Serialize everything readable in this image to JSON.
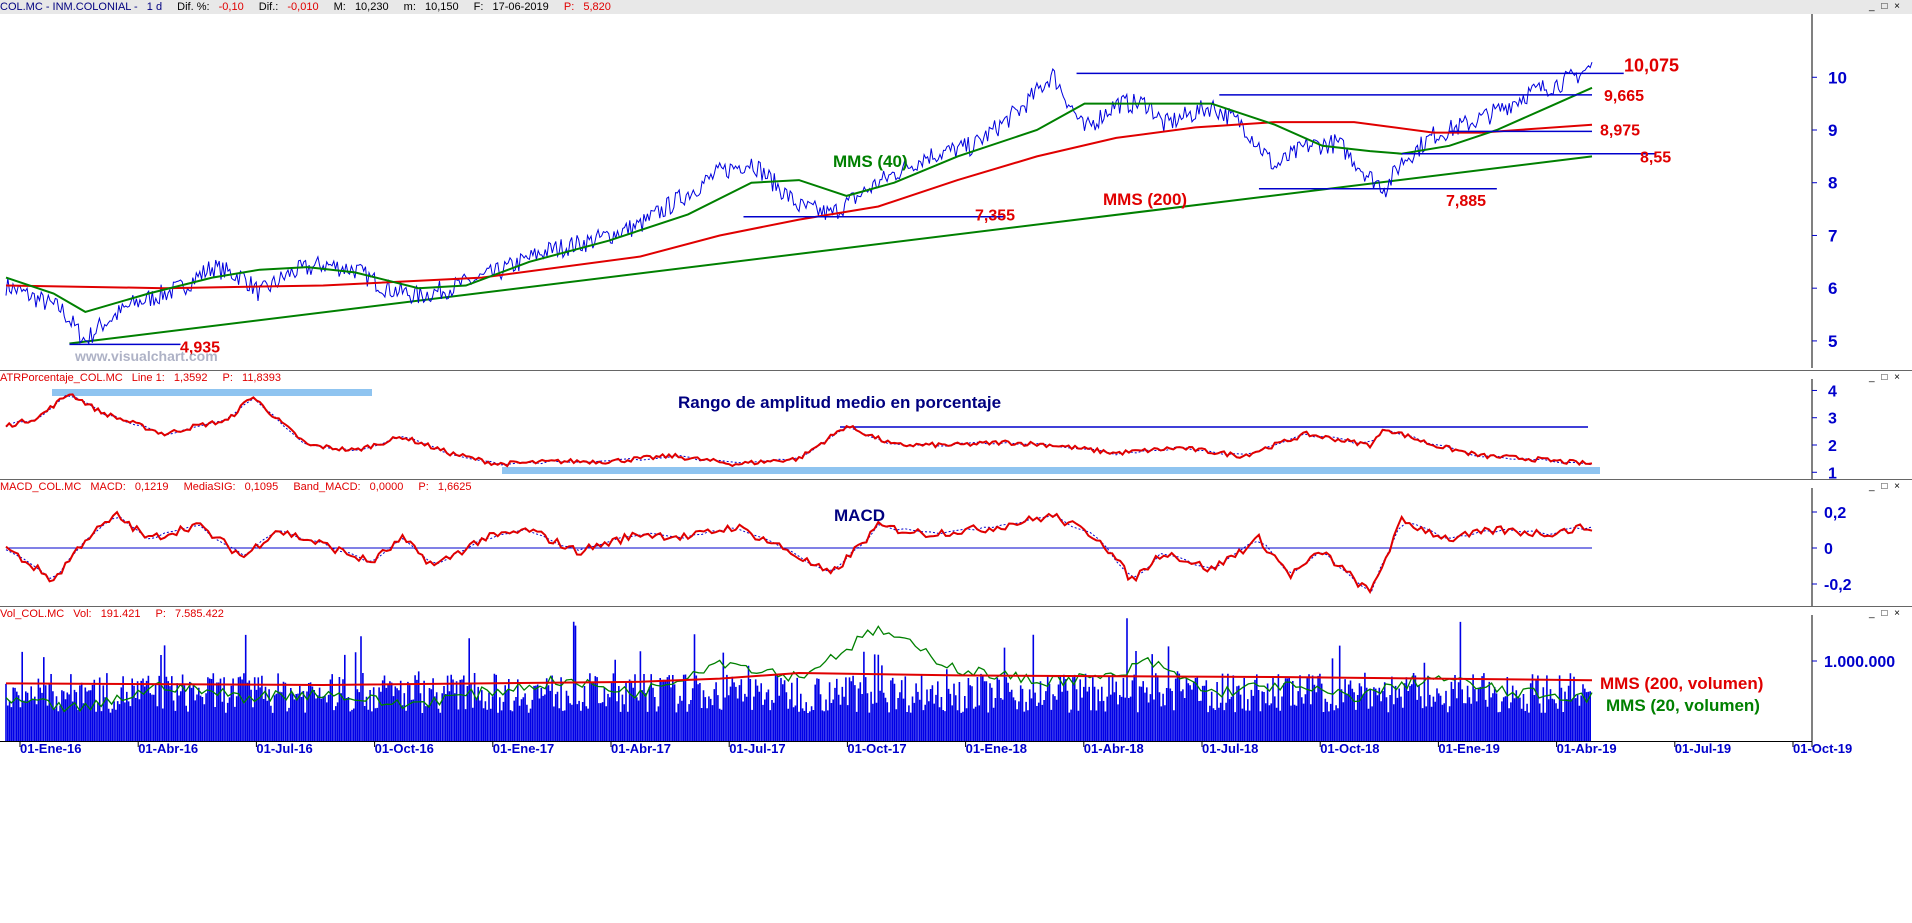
{
  "colors": {
    "price": "#0000dd",
    "mma200": "#e00000",
    "mma40": "#008000",
    "trend": "#008000",
    "hline": "#0000cc",
    "annot_red": "#e00000",
    "annot_green": "#008000",
    "annot_navy": "#000080",
    "band": "#8fc4f0",
    "axis": "#0000cc"
  },
  "main": {
    "header": {
      "symbol": "COL.MC - INM.COLONIAL -",
      "period": "1 d",
      "dif_pct_label": "Dif. %:",
      "dif_pct": "-0,10",
      "dif_label": "Dif.:",
      "dif": "-0,010",
      "max_label": "M:",
      "max": "10,230",
      "min_label": "m:",
      "min": "10,150",
      "date_label": "F:",
      "date": "17-06-2019",
      "p_label": "P:",
      "p": "5,820"
    },
    "watermark": "www.visualchart.com",
    "labels": {
      "mms40": "MMS (40)",
      "mms200": "MMS (200)"
    },
    "levels": [
      "10,075",
      "9,665",
      "8,975",
      "8,55",
      "7,885",
      "7,355",
      "4,935"
    ],
    "y_ticks": [
      "10",
      "9",
      "8",
      "7",
      "6",
      "5"
    ]
  },
  "atr": {
    "header": {
      "name": "ATRPorcentaje_COL.MC",
      "line_label": "Line 1:",
      "line": "1,3592",
      "p_label": "P:",
      "p": "11,8393"
    },
    "title": "Rango de amplitud medio en porcentaje",
    "y_ticks": [
      "4",
      "3",
      "2",
      "1"
    ]
  },
  "macd": {
    "header": {
      "name": "MACD_COL.MC",
      "macd_label": "MACD:",
      "macd": "0,1219",
      "sig_label": "MediaSIG:",
      "sig": "0,1095",
      "band_label": "Band_MACD:",
      "band": "0,0000",
      "p_label": "P:",
      "p": "1,6625"
    },
    "title": "MACD",
    "y_ticks": [
      "0,2",
      "0",
      "-0,2"
    ]
  },
  "vol": {
    "header": {
      "name": "Vol_COL.MC",
      "vol_label": "Vol:",
      "vol": "191.421",
      "p_label": "P:",
      "p": "7.585.422"
    },
    "labels": {
      "mms200": "MMS (200, volumen)",
      "mms20": "MMS (20, volumen)"
    },
    "y_ticks": [
      "1.000.000"
    ]
  },
  "window_controls": "_ □ ×",
  "chart_data": {
    "type": "line",
    "title": "COL.MC - INM.COLONIAL",
    "x_ticks": [
      "01-Ene-16",
      "01-Abr-16",
      "01-Jul-16",
      "01-Oct-16",
      "01-Ene-17",
      "01-Abr-17",
      "01-Jul-17",
      "01-Oct-17",
      "01-Ene-18",
      "01-Abr-18",
      "01-Jul-18",
      "01-Oct-18",
      "01-Ene-19",
      "01-Abr-19",
      "01-Jul-19",
      "01-Oct-19"
    ],
    "price_ylim": [
      4.6,
      11.2
    ],
    "price_path": [
      [
        0,
        6.05
      ],
      [
        0.035,
        5.6
      ],
      [
        0.05,
        5.0
      ],
      [
        0.06,
        5.3
      ],
      [
        0.08,
        5.7
      ],
      [
        0.11,
        6.0
      ],
      [
        0.13,
        6.4
      ],
      [
        0.15,
        6.2
      ],
      [
        0.16,
        5.9
      ],
      [
        0.18,
        6.3
      ],
      [
        0.2,
        6.45
      ],
      [
        0.22,
        6.35
      ],
      [
        0.24,
        6.0
      ],
      [
        0.26,
        5.85
      ],
      [
        0.28,
        6.0
      ],
      [
        0.31,
        6.3
      ],
      [
        0.34,
        6.7
      ],
      [
        0.37,
        6.9
      ],
      [
        0.4,
        7.2
      ],
      [
        0.43,
        7.8
      ],
      [
        0.45,
        8.2
      ],
      [
        0.47,
        8.4
      ],
      [
        0.5,
        7.55
      ],
      [
        0.52,
        7.4
      ],
      [
        0.55,
        8.0
      ],
      [
        0.58,
        8.5
      ],
      [
        0.61,
        8.7
      ],
      [
        0.64,
        9.4
      ],
      [
        0.66,
        10.05
      ],
      [
        0.68,
        9.0
      ],
      [
        0.7,
        9.5
      ],
      [
        0.72,
        9.5
      ],
      [
        0.73,
        9.1
      ],
      [
        0.76,
        9.45
      ],
      [
        0.78,
        9.1
      ],
      [
        0.8,
        8.3
      ],
      [
        0.82,
        8.7
      ],
      [
        0.84,
        8.75
      ],
      [
        0.86,
        8.1
      ],
      [
        0.87,
        7.9
      ],
      [
        0.88,
        8.4
      ],
      [
        0.9,
        8.9
      ],
      [
        0.92,
        9.1
      ],
      [
        0.94,
        9.35
      ],
      [
        0.96,
        9.7
      ],
      [
        0.985,
        9.95
      ],
      [
        1.0,
        10.2
      ]
    ],
    "mms200_path": [
      [
        0,
        6.05
      ],
      [
        0.1,
        6.0
      ],
      [
        0.2,
        6.05
      ],
      [
        0.3,
        6.2
      ],
      [
        0.4,
        6.6
      ],
      [
        0.45,
        7.0
      ],
      [
        0.5,
        7.3
      ],
      [
        0.55,
        7.55
      ],
      [
        0.6,
        8.05
      ],
      [
        0.65,
        8.5
      ],
      [
        0.7,
        8.85
      ],
      [
        0.75,
        9.05
      ],
      [
        0.8,
        9.15
      ],
      [
        0.85,
        9.15
      ],
      [
        0.9,
        8.95
      ],
      [
        0.93,
        8.95
      ],
      [
        1.0,
        9.1
      ]
    ],
    "mms40_path": [
      [
        0,
        6.2
      ],
      [
        0.03,
        5.9
      ],
      [
        0.05,
        5.55
      ],
      [
        0.09,
        5.9
      ],
      [
        0.13,
        6.2
      ],
      [
        0.16,
        6.35
      ],
      [
        0.19,
        6.4
      ],
      [
        0.22,
        6.3
      ],
      [
        0.26,
        6.0
      ],
      [
        0.29,
        6.05
      ],
      [
        0.33,
        6.5
      ],
      [
        0.38,
        6.9
      ],
      [
        0.43,
        7.4
      ],
      [
        0.47,
        8.0
      ],
      [
        0.5,
        8.05
      ],
      [
        0.53,
        7.75
      ],
      [
        0.56,
        8.0
      ],
      [
        0.6,
        8.5
      ],
      [
        0.65,
        9.0
      ],
      [
        0.68,
        9.5
      ],
      [
        0.72,
        9.5
      ],
      [
        0.76,
        9.5
      ],
      [
        0.8,
        9.1
      ],
      [
        0.83,
        8.7
      ],
      [
        0.86,
        8.6
      ],
      [
        0.88,
        8.55
      ],
      [
        0.91,
        8.7
      ],
      [
        0.94,
        9.0
      ],
      [
        0.97,
        9.4
      ],
      [
        1.0,
        9.8
      ]
    ],
    "trendline": [
      [
        0.04,
        4.95
      ],
      [
        1.0,
        8.5
      ]
    ],
    "levels": [
      {
        "label": "10,075",
        "value": 10.075,
        "from": 0.675,
        "to": 1.02
      },
      {
        "label": "9,665",
        "value": 9.665,
        "from": 0.765,
        "to": 1.0
      },
      {
        "label": "8,975",
        "value": 8.975,
        "from": 0.91,
        "to": 1.0
      },
      {
        "label": "8,55",
        "value": 8.55,
        "from": 0.88,
        "to": 1.04
      },
      {
        "label": "7,885",
        "value": 7.885,
        "from": 0.79,
        "to": 0.94
      },
      {
        "label": "7,355",
        "value": 7.355,
        "from": 0.465,
        "to": 0.63
      },
      {
        "label": "4,935",
        "value": 4.935,
        "from": 0.04,
        "to": 0.11
      }
    ],
    "atr_ylim": [
      0.9,
      4.2
    ],
    "atr_path": [
      [
        0,
        2.7
      ],
      [
        0.02,
        3.0
      ],
      [
        0.04,
        3.9
      ],
      [
        0.06,
        3.2
      ],
      [
        0.08,
        2.8
      ],
      [
        0.1,
        2.4
      ],
      [
        0.12,
        2.7
      ],
      [
        0.14,
        2.9
      ],
      [
        0.155,
        3.8
      ],
      [
        0.17,
        3.0
      ],
      [
        0.19,
        2.0
      ],
      [
        0.22,
        1.8
      ],
      [
        0.25,
        2.3
      ],
      [
        0.28,
        1.7
      ],
      [
        0.31,
        1.3
      ],
      [
        0.35,
        1.4
      ],
      [
        0.38,
        1.4
      ],
      [
        0.42,
        1.6
      ],
      [
        0.46,
        1.3
      ],
      [
        0.5,
        1.5
      ],
      [
        0.53,
        2.7
      ],
      [
        0.56,
        2.0
      ],
      [
        0.6,
        2.0
      ],
      [
        0.63,
        2.1
      ],
      [
        0.66,
        2.0
      ],
      [
        0.7,
        1.7
      ],
      [
        0.74,
        1.9
      ],
      [
        0.78,
        1.6
      ],
      [
        0.82,
        2.4
      ],
      [
        0.86,
        2.0
      ],
      [
        0.87,
        2.6
      ],
      [
        0.9,
        2.0
      ],
      [
        0.93,
        1.6
      ],
      [
        0.96,
        1.5
      ],
      [
        1.0,
        1.3
      ]
    ],
    "macd_ylim": [
      -0.3,
      0.3
    ],
    "macd_path": [
      [
        0,
        0
      ],
      [
        0.03,
        -0.18
      ],
      [
        0.05,
        0.05
      ],
      [
        0.07,
        0.18
      ],
      [
        0.09,
        0.05
      ],
      [
        0.12,
        0.13
      ],
      [
        0.15,
        -0.05
      ],
      [
        0.17,
        0.1
      ],
      [
        0.2,
        0.02
      ],
      [
        0.23,
        -0.08
      ],
      [
        0.25,
        0.05
      ],
      [
        0.27,
        -0.1
      ],
      [
        0.3,
        0.05
      ],
      [
        0.33,
        0.1
      ],
      [
        0.36,
        -0.02
      ],
      [
        0.4,
        0.08
      ],
      [
        0.43,
        0.06
      ],
      [
        0.46,
        0.12
      ],
      [
        0.49,
        0.0
      ],
      [
        0.52,
        -0.15
      ],
      [
        0.55,
        0.12
      ],
      [
        0.58,
        0.08
      ],
      [
        0.62,
        0.11
      ],
      [
        0.66,
        0.18
      ],
      [
        0.69,
        0.05
      ],
      [
        0.71,
        -0.18
      ],
      [
        0.73,
        -0.02
      ],
      [
        0.76,
        -0.12
      ],
      [
        0.79,
        0.05
      ],
      [
        0.81,
        -0.15
      ],
      [
        0.83,
        -0.02
      ],
      [
        0.86,
        -0.25
      ],
      [
        0.88,
        0.15
      ],
      [
        0.91,
        0.05
      ],
      [
        0.94,
        0.1
      ],
      [
        0.97,
        0.08
      ],
      [
        1.0,
        0.12
      ]
    ],
    "vol_ylim": [
      0,
      1500000
    ],
    "vol_mms200_path": [
      [
        0,
        0.72
      ],
      [
        0.2,
        0.7
      ],
      [
        0.4,
        0.74
      ],
      [
        0.45,
        0.78
      ],
      [
        0.5,
        0.85
      ],
      [
        0.6,
        0.82
      ],
      [
        0.8,
        0.8
      ],
      [
        1.0,
        0.76
      ]
    ],
    "vol_mms20_path": [
      [
        0,
        0.5
      ],
      [
        0.05,
        0.4
      ],
      [
        0.1,
        0.7
      ],
      [
        0.15,
        0.55
      ],
      [
        0.2,
        0.6
      ],
      [
        0.25,
        0.45
      ],
      [
        0.3,
        0.6
      ],
      [
        0.35,
        0.75
      ],
      [
        0.4,
        0.6
      ],
      [
        0.45,
        1.0
      ],
      [
        0.5,
        0.8
      ],
      [
        0.55,
        1.4
      ],
      [
        0.6,
        0.9
      ],
      [
        0.65,
        0.75
      ],
      [
        0.7,
        0.8
      ],
      [
        0.72,
        1.0
      ],
      [
        0.76,
        0.6
      ],
      [
        0.8,
        0.7
      ],
      [
        0.85,
        0.55
      ],
      [
        0.9,
        0.8
      ],
      [
        0.95,
        0.6
      ],
      [
        1.0,
        0.55
      ]
    ]
  }
}
